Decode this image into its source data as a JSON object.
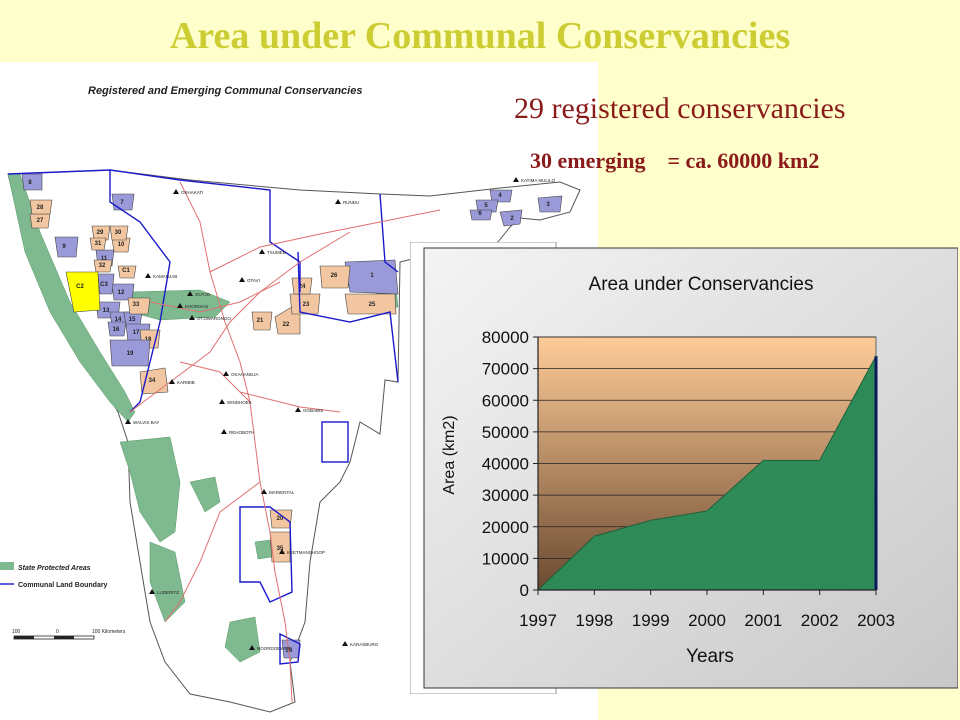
{
  "slide": {
    "title": "Area under Communal Conservancies",
    "registered_text": "29 registered conservancies",
    "emerging_text": "30 emerging",
    "emerging_area_text": "= ca. 60000 km2"
  },
  "map": {
    "title": "Registered and Emerging Communal Conservancies",
    "legend": {
      "protected_label": "State Protected Areas",
      "boundary_label": "Communal Land Boundary",
      "scale_ticks": [
        "100",
        "0",
        "100 Kilometers"
      ]
    },
    "town_labels": [
      "OSHAKATI",
      "RUNDU",
      "KATIMA MULILO",
      "TSUMEB",
      "OUTJO",
      "OTAVI",
      "KAMANJAB",
      "KHORIXAS",
      "OTJIWARONGO",
      "KARIBIB",
      "OKAHANDJA",
      "WALVIS BAY",
      "WINDHOEK",
      "GOBABIS",
      "REHOBOTH",
      "MARIENTAL",
      "KEETMANSHOOP",
      "LUDERITZ",
      "KARASBURG",
      "NOORDOEWER"
    ],
    "conservancy_labels": [
      "1",
      "2",
      "3",
      "4",
      "5",
      "6",
      "7",
      "8",
      "9",
      "10",
      "11",
      "12",
      "13",
      "14",
      "15",
      "16",
      "17",
      "18",
      "19",
      "20",
      "21",
      "22",
      "23",
      "24",
      "25",
      "26",
      "27",
      "28",
      "29",
      "30",
      "31",
      "32",
      "33",
      "34",
      "35",
      "36",
      "C1",
      "C2",
      "C3"
    ],
    "colors": {
      "protected": "#7fb98f",
      "registered": "#9a9ad8",
      "emerging": "#f2c6a0",
      "highlight": "#ffff00",
      "boundary": "#1a1acc",
      "roads": "#e07070"
    }
  },
  "chart_data": {
    "type": "area",
    "title": "Area under Conservancies",
    "xlabel": "Years",
    "ylabel": "Area (km2)",
    "x": [
      "1997",
      "1998",
      "1999",
      "2000",
      "2001",
      "2002",
      "2003"
    ],
    "values": [
      0,
      17000,
      22000,
      25000,
      41000,
      41000,
      74000
    ],
    "ylim": [
      0,
      80000
    ],
    "yticks": [
      0,
      10000,
      20000,
      30000,
      40000,
      50000,
      60000,
      70000,
      80000
    ],
    "grid": true,
    "colors": {
      "fill": "#2e8b57",
      "plot_top": "#ffcc99",
      "plot_bottom": "#6b4a30"
    }
  }
}
